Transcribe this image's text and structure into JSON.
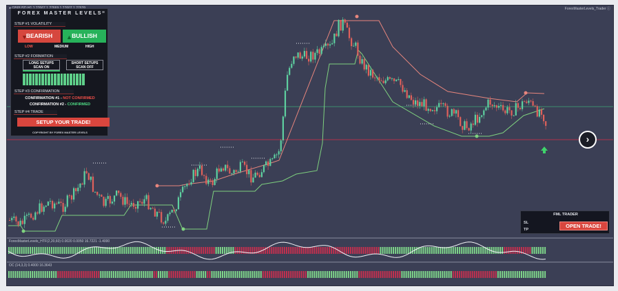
{
  "chart": {
    "symbol_info": "● GBPUSD,H1  1.27667  1.27669  1.27607  1.27639",
    "indicator_title": "ForexMasterLevels_Trader ⓘ",
    "osc1_label": "ForexMasterLevels_HTF(2,20,60) 0.0020  0.0050  16.7221  -1.4000",
    "osc2_label": "OC (14,3,3) 0.4000  16.3643",
    "colors": {
      "background": "#3b3f55",
      "bull": "#5ed0a0",
      "bear": "#e0615b",
      "support": "#7fd27f",
      "resistance": "#e8867d",
      "hline_green": "#3d8f6e",
      "hline_red": "#b0304a"
    }
  },
  "fml_panel": {
    "title": "FOREX MASTER LEVELS",
    "menu_icon": "≡",
    "step1": "STEP #1 VOLATILITY",
    "bearish": "BEARISH",
    "bullish": "BULLISH",
    "vol_low": "LOW",
    "vol_medium": "MEDIUM",
    "vol_high": "HIGH",
    "step2": "STEP #2 FORMATION",
    "long_setups": "LONG SETUPS",
    "long_scan": "SCAN ON",
    "short_setups": "SHORT SETUPS",
    "short_scan": "SCAN OFF",
    "step3": "STEP #3 CONFIRMATION",
    "conf1_label": "CONFIRMATION #1 - ",
    "conf1_status": "NOT CONFIRMED",
    "conf2_label": "CONFIRMATION #2 - ",
    "conf2_status": "CONFIRMED",
    "step4": "STEP #4 TRADE",
    "setup_button": "SETUP YOUR TRADE!",
    "copyright": "COPYRIGHT BY FOREX MASTER LEVELS"
  },
  "trader_panel": {
    "title": "FML TRADER",
    "sl": "SL",
    "tp": "TP",
    "open_trade": "OPEN TRADE!"
  },
  "nav": {
    "next_icon": "chevron-right-icon",
    "next_glyph": "›"
  }
}
